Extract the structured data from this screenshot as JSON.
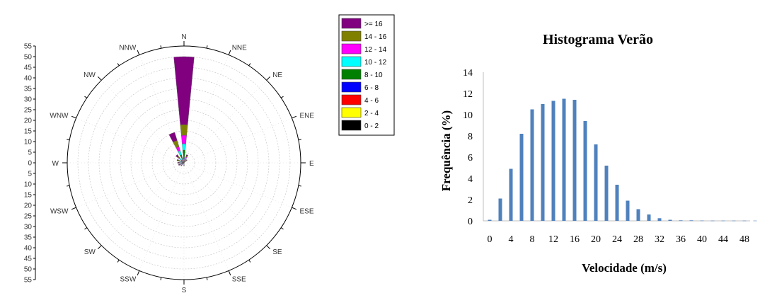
{
  "chart_data": [
    {
      "type": "wind-rose",
      "directions": [
        "N",
        "NNE",
        "NE",
        "ENE",
        "E",
        "ESE",
        "SE",
        "SSE",
        "S",
        "SSW",
        "SW",
        "WSW",
        "W",
        "WNW",
        "NW",
        "NNW"
      ],
      "radial_ticks": [
        "55",
        "50",
        "45",
        "40",
        "35",
        "30",
        "25",
        "20",
        "15",
        "10",
        "5",
        "0",
        "5",
        "10",
        "15",
        "20",
        "25",
        "30",
        "35",
        "40",
        "45",
        "50",
        "55"
      ],
      "rlim": [
        0,
        55
      ],
      "legend": [
        {
          "label": ">= 16",
          "color": "#800080"
        },
        {
          "label": "14 - 16",
          "color": "#808000"
        },
        {
          "label": "12 - 14",
          "color": "#ff00ff"
        },
        {
          "label": "10 - 12",
          "color": "#00ffff"
        },
        {
          "label": "8 - 10",
          "color": "#008000"
        },
        {
          "label": "6 - 8",
          "color": "#0000ff"
        },
        {
          "label": "4 - 6",
          "color": "#ff0000"
        },
        {
          "label": "2 - 4",
          "color": "#ffff00"
        },
        {
          "label": "0 - 2",
          "color": "#000000"
        }
      ],
      "series": [
        {
          "direction": "N",
          "cumulative": [
            0.5,
            1,
            1.5,
            2.5,
            6,
            9,
            13,
            18,
            50
          ]
        },
        {
          "direction": "NNW",
          "cumulative": [
            0.5,
            1,
            1.5,
            2,
            4,
            6,
            8,
            11,
            15
          ]
        },
        {
          "direction": "NW",
          "cumulative": [
            0.5,
            0.8,
            1,
            1.5,
            2,
            3,
            3.5,
            4,
            5
          ]
        },
        {
          "direction": "NNE",
          "cumulative": [
            0.5,
            0.8,
            1,
            1.5,
            2,
            2.5,
            3,
            3.5,
            4
          ]
        },
        {
          "direction": "WNW",
          "cumulative": [
            0.3,
            0.5,
            0.8,
            1,
            1.5,
            2,
            2.5,
            3,
            3.5
          ]
        },
        {
          "direction": "W",
          "cumulative": [
            0.3,
            0.5,
            0.7,
            1,
            1.3,
            1.7,
            2,
            2.5,
            3
          ]
        },
        {
          "direction": "WSW",
          "cumulative": [
            0.3,
            0.5,
            0.7,
            1,
            1.3,
            1.7,
            2,
            2.3,
            2.7
          ]
        },
        {
          "direction": "SW",
          "cumulative": [
            0.3,
            0.4,
            0.5,
            0.7,
            1,
            1.2,
            1.5,
            1.7,
            2
          ]
        },
        {
          "direction": "NE",
          "cumulative": [
            0.3,
            0.4,
            0.5,
            0.7,
            1,
            1.2,
            1.5,
            1.7,
            2
          ]
        },
        {
          "direction": "S",
          "cumulative": [
            0.2,
            0.3,
            0.4,
            0.5,
            0.7,
            0.9,
            1.1,
            1.3,
            1.5
          ]
        }
      ]
    },
    {
      "type": "bar",
      "title": "Histograma Verão",
      "xlabel": "Velocidade (m/s)",
      "ylabel": "Frequência (%)",
      "xlim": [
        0,
        50
      ],
      "ylim": [
        0,
        14
      ],
      "xticks": [
        "0",
        "4",
        "8",
        "12",
        "16",
        "20",
        "24",
        "28",
        "32",
        "36",
        "40",
        "44",
        "48"
      ],
      "yticks": [
        "0",
        "2",
        "4",
        "6",
        "8",
        "10",
        "12",
        "14"
      ],
      "grid": false,
      "bar_color": "#4f81bd",
      "x": [
        0,
        2,
        4,
        6,
        8,
        10,
        12,
        14,
        16,
        18,
        20,
        22,
        24,
        26,
        28,
        30,
        32,
        34,
        36,
        38,
        40,
        42,
        44,
        46,
        48,
        50
      ],
      "values": [
        0.1,
        2.1,
        4.9,
        8.2,
        10.5,
        11.0,
        11.3,
        11.5,
        11.4,
        9.4,
        7.2,
        5.2,
        3.4,
        1.9,
        1.1,
        0.6,
        0.25,
        0.1,
        0.05,
        0.05,
        0.03,
        0.02,
        0.02,
        0.02,
        0.02,
        0.02
      ]
    }
  ]
}
